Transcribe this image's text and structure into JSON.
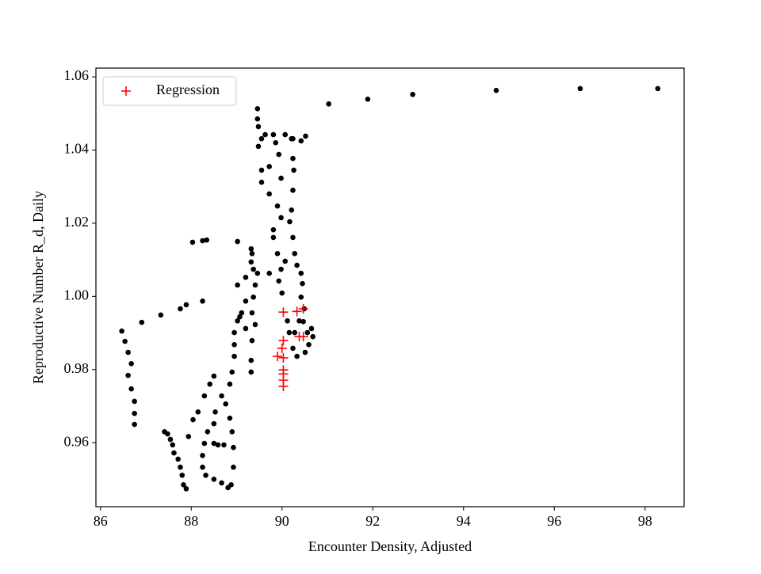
{
  "chart_data": {
    "type": "scatter",
    "xlabel": "Encounter Density, Adjusted",
    "ylabel": "Reproductive Number R_d, Daily",
    "xlim": [
      85.9,
      98.86
    ],
    "ylim": [
      0.9425,
      1.0624
    ],
    "xticks": [
      86,
      88,
      90,
      92,
      94,
      96,
      98
    ],
    "yticks": [
      0.96,
      0.98,
      {
        "value": 1,
        "label": "1.00"
      },
      1.02,
      1.04,
      1.06
    ],
    "grid": false,
    "legend_loc": "upper left",
    "series": [
      {
        "color": "#000000",
        "marker": "dot",
        "x": [
          91.03,
          91.89,
          92.88,
          94.72,
          96.57,
          98.28,
          86.47,
          86.54,
          86.61,
          86.68,
          86.61,
          86.68,
          86.75,
          86.75,
          86.75,
          86.91,
          87.33,
          87.76,
          87.89,
          88.25,
          88.03,
          88.25,
          88.34,
          89.02,
          89.32,
          89.32,
          89.46,
          89.46,
          89.48,
          89.55,
          89.48,
          89.63,
          89.81,
          90.07,
          90.24,
          90.42,
          90.52,
          89.55,
          89.55,
          89.72,
          89.9,
          89.98,
          89.81,
          89.81,
          89.9,
          89.98,
          89.72,
          89.46,
          89.2,
          89.02,
          89.2,
          89.11,
          89.02,
          88.95,
          88.95,
          88.95,
          88.9,
          88.85,
          88.67,
          88.53,
          88.5,
          88.36,
          88.29,
          88.25,
          88.25,
          88.32,
          88.5,
          88.67,
          88.81,
          88.88,
          88.93,
          88.93,
          88.9,
          88.85,
          88.76,
          88.5,
          88.59,
          88.72,
          87.41,
          87.48,
          87.54,
          87.59,
          87.62,
          87.71,
          87.76,
          87.8,
          87.83,
          87.89,
          87.94,
          88.04,
          88.15,
          88.29,
          88.41,
          88.5,
          90.21,
          90.24,
          90.26,
          90.24,
          90.21,
          90.17,
          90.24,
          90.28,
          90.33,
          90.42,
          90.45,
          90.42,
          90.49,
          90.38,
          90.28,
          90.24,
          90.33,
          90.51,
          90.59,
          90.68,
          90.65,
          90.56,
          90.47,
          90.16,
          90.12,
          90,
          89.93,
          90.07,
          89.34,
          89.37,
          89.41,
          89.37,
          89.34,
          89.41,
          89.34,
          89.32,
          89.32,
          89.2,
          89.07,
          89.72,
          89.98,
          89.86,
          89.93
        ],
        "values": [
          1.0526,
          1.0539,
          1.0552,
          1.0563,
          1.0568,
          1.0568,
          0.9905,
          0.9877,
          0.9847,
          0.9816,
          0.9784,
          0.9747,
          0.9713,
          0.968,
          0.965,
          0.9929,
          0.9949,
          0.9966,
          0.9977,
          0.9987,
          1.0148,
          1.0152,
          1.0154,
          1.015,
          1.013,
          1.0094,
          1.0513,
          1.0485,
          1.0464,
          1.0431,
          1.041,
          1.0442,
          1.0442,
          1.0442,
          1.0431,
          1.0425,
          1.0438,
          1.0345,
          1.0312,
          1.028,
          1.0247,
          1.0215,
          1.0182,
          1.0161,
          1.0117,
          1.0074,
          1.0063,
          1.0063,
          1.0052,
          1.0031,
          0.9987,
          0.9955,
          0.9933,
          0.9901,
          0.9868,
          0.9836,
          0.9793,
          0.976,
          0.9728,
          0.9684,
          0.9652,
          0.963,
          0.9598,
          0.9565,
          0.9533,
          0.9511,
          0.95,
          0.949,
          0.9477,
          0.9485,
          0.9533,
          0.9587,
          0.963,
          0.9667,
          0.9706,
          0.9598,
          0.9594,
          0.9594,
          0.963,
          0.9624,
          0.9609,
          0.9594,
          0.9572,
          0.9555,
          0.9533,
          0.9511,
          0.9485,
          0.9474,
          0.9617,
          0.9663,
          0.9684,
          0.9728,
          0.976,
          0.9782,
          1.0431,
          1.0377,
          1.0345,
          1.029,
          1.0236,
          1.0204,
          1.0161,
          1.0117,
          1.0085,
          1.0063,
          1.0035,
          0.9998,
          0.9966,
          0.9933,
          0.9901,
          0.9858,
          0.9836,
          0.9847,
          0.9868,
          0.989,
          0.9912,
          0.9901,
          0.9931,
          0.9901,
          0.9933,
          1.0009,
          1.0042,
          1.0096,
          1.0117,
          1.0074,
          1.0031,
          0.9998,
          0.9955,
          0.9923,
          0.9879,
          0.9825,
          0.9793,
          0.9912,
          0.9944,
          1.0355,
          1.0323,
          1.042,
          1.0388
        ]
      },
      {
        "name": "Regression",
        "color": "#ff0000",
        "marker": "plus",
        "x": [
          90.03,
          90.47,
          90.33,
          90.38,
          90.47,
          90.03,
          90,
          89.9,
          90.03,
          90.03,
          90.03,
          90.03,
          90.03
        ],
        "values": [
          0.9957,
          0.9966,
          0.9959,
          0.989,
          0.989,
          0.9879,
          0.9858,
          0.9836,
          0.9832,
          0.9799,
          0.9788,
          0.9771,
          0.9754
        ]
      }
    ]
  }
}
